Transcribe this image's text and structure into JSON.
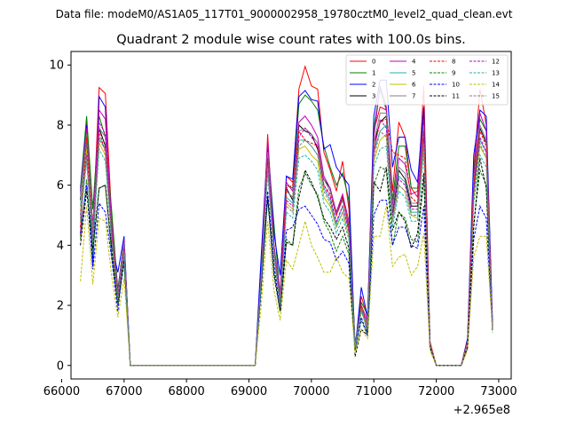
{
  "chart_data": {
    "type": "line",
    "suptitle": "Data file: modeM0/AS1A05_117T01_9000002958_19780cztM0_level2_quad_clean.evt",
    "title": "Quadrant 2 module wise count rates with 100.0s bins.",
    "xlabel": "",
    "ylabel": "",
    "x_offset_label": "+2.965e8",
    "xlim": [
      66150,
      73200
    ],
    "ylim": [
      -0.45,
      10.45
    ],
    "xticks": [
      66000,
      67000,
      68000,
      69000,
      70000,
      71000,
      72000,
      73000
    ],
    "yticks": [
      0,
      2,
      4,
      6,
      8,
      10
    ],
    "legend_position": "top-right",
    "x": [
      66300,
      66400,
      66500,
      66600,
      66700,
      66800,
      66900,
      67000,
      67100,
      67200,
      67300,
      67400,
      67500,
      67600,
      67700,
      67800,
      67900,
      68000,
      68100,
      68200,
      68300,
      68400,
      68500,
      68600,
      68700,
      68800,
      68900,
      69000,
      69100,
      69200,
      69300,
      69400,
      69500,
      69600,
      69700,
      69800,
      69900,
      70000,
      70100,
      70200,
      70300,
      70400,
      70500,
      70600,
      70700,
      70800,
      70900,
      71000,
      71100,
      71200,
      71300,
      71400,
      71500,
      71600,
      71700,
      71800,
      71900,
      72000,
      72100,
      72200,
      72300,
      72400,
      72500,
      72600,
      72700,
      72800,
      72900
    ],
    "series": [
      {
        "name": "0",
        "color": "#ff0000",
        "dash": false,
        "values": [
          4.3,
          8.2,
          4.5,
          9.25,
          9.05,
          5.0,
          2.2,
          3.9,
          0,
          0,
          0,
          0,
          0,
          0,
          0,
          0,
          0,
          0,
          0,
          0,
          0,
          0,
          0,
          0,
          0,
          0,
          0,
          0,
          0,
          3.0,
          7.7,
          4.0,
          2.1,
          6.3,
          6.1,
          9.2,
          9.95,
          9.3,
          9.2,
          7.1,
          6.5,
          5.8,
          6.8,
          5.2,
          0.6,
          2.3,
          1.6,
          7.8,
          8.6,
          8.5,
          5.8,
          8.1,
          7.6,
          5.9,
          5.6,
          9.3,
          0.8,
          0,
          0,
          0,
          0,
          0,
          0.8,
          6.5,
          9.2,
          8.0,
          1.3
        ]
      },
      {
        "name": "1",
        "color": "#008000",
        "dash": false,
        "values": [
          5.9,
          8.3,
          5.2,
          8.3,
          7.6,
          5.2,
          2.5,
          4.2,
          0,
          0,
          0,
          0,
          0,
          0,
          0,
          0,
          0,
          0,
          0,
          0,
          0,
          0,
          0,
          0,
          0,
          0,
          0,
          0,
          0,
          3.5,
          7.3,
          4.7,
          2.3,
          6.0,
          5.9,
          8.7,
          9.0,
          8.8,
          8.5,
          7.3,
          6.6,
          6.0,
          6.4,
          5.5,
          0.7,
          2.1,
          1.7,
          7.9,
          9.2,
          8.5,
          5.5,
          7.3,
          7.3,
          5.9,
          5.9,
          8.4,
          0.7,
          0,
          0,
          0,
          0,
          0,
          0.8,
          6.5,
          8.2,
          7.8,
          1.3
        ]
      },
      {
        "name": "2",
        "color": "#0000ff",
        "dash": false,
        "values": [
          5.8,
          8.0,
          3.3,
          8.95,
          8.6,
          4.0,
          3.1,
          4.3,
          0,
          0,
          0,
          0,
          0,
          0,
          0,
          0,
          0,
          0,
          0,
          0,
          0,
          0,
          0,
          0,
          0,
          0,
          0,
          0,
          0,
          3.8,
          7.4,
          4.4,
          3.0,
          6.3,
          6.2,
          8.95,
          9.15,
          8.85,
          8.8,
          7.2,
          7.35,
          6.6,
          6.3,
          6.0,
          0.5,
          2.6,
          1.6,
          8.3,
          9.5,
          9.5,
          6.6,
          7.6,
          7.6,
          6.5,
          6.1,
          8.6,
          0.7,
          0,
          0,
          0,
          0,
          0,
          0.9,
          7.0,
          8.5,
          8.3,
          1.5
        ]
      },
      {
        "name": "3",
        "color": "#000000",
        "dash": false,
        "values": [
          5.5,
          7.8,
          4.5,
          7.9,
          7.3,
          4.6,
          2.5,
          4.1,
          0,
          0,
          0,
          0,
          0,
          0,
          0,
          0,
          0,
          0,
          0,
          0,
          0,
          0,
          0,
          0,
          0,
          0,
          0,
          0,
          0,
          3.1,
          7.2,
          4.0,
          2.2,
          5.9,
          5.5,
          8.0,
          7.8,
          7.7,
          7.2,
          6.2,
          5.9,
          5.0,
          5.6,
          4.6,
          0.6,
          1.9,
          1.1,
          7.4,
          8.1,
          8.3,
          5.0,
          6.5,
          6.2,
          5.3,
          5.3,
          8.1,
          0.7,
          0,
          0,
          0,
          0,
          0,
          0.7,
          5.9,
          7.9,
          7.4,
          1.2
        ]
      },
      {
        "name": "4",
        "color": "#bf00bf",
        "dash": false,
        "values": [
          5.7,
          7.9,
          4.6,
          8.5,
          8.2,
          4.8,
          2.4,
          4.2,
          0,
          0,
          0,
          0,
          0,
          0,
          0,
          0,
          0,
          0,
          0,
          0,
          0,
          0,
          0,
          0,
          0,
          0,
          0,
          0,
          0,
          3.2,
          7.5,
          4.0,
          2.4,
          6.1,
          5.8,
          8.1,
          8.3,
          8.0,
          7.6,
          6.3,
          5.9,
          5.1,
          5.7,
          4.8,
          0.6,
          2.0,
          1.5,
          7.6,
          9.3,
          8.6,
          5.3,
          6.9,
          6.7,
          5.7,
          5.8,
          8.2,
          0.7,
          0,
          0,
          0,
          0,
          0,
          0.8,
          6.3,
          8.4,
          7.8,
          1.3
        ]
      },
      {
        "name": "5",
        "color": "#20b2aa",
        "dash": false,
        "values": [
          5.3,
          7.4,
          4.3,
          7.6,
          7.2,
          4.4,
          2.3,
          3.9,
          0,
          0,
          0,
          0,
          0,
          0,
          0,
          0,
          0,
          0,
          0,
          0,
          0,
          0,
          0,
          0,
          0,
          0,
          0,
          0,
          0,
          3.0,
          6.9,
          3.8,
          2.1,
          5.6,
          5.4,
          7.5,
          7.5,
          7.3,
          7.0,
          5.9,
          5.5,
          4.7,
          5.3,
          4.5,
          0.6,
          1.9,
          1.3,
          7.1,
          7.8,
          8.0,
          4.9,
          6.3,
          6.1,
          5.1,
          5.1,
          7.6,
          0.7,
          0,
          0,
          0,
          0,
          0,
          0.7,
          5.8,
          7.5,
          7.1,
          1.2
        ]
      },
      {
        "name": "6",
        "color": "#bfbf00",
        "dash": false,
        "values": [
          5.1,
          7.2,
          4.1,
          7.4,
          7.0,
          4.3,
          2.1,
          3.8,
          0,
          0,
          0,
          0,
          0,
          0,
          0,
          0,
          0,
          0,
          0,
          0,
          0,
          0,
          0,
          0,
          0,
          0,
          0,
          0,
          0,
          2.9,
          6.6,
          3.7,
          2.0,
          5.4,
          5.2,
          7.2,
          7.3,
          7.0,
          6.8,
          5.6,
          5.3,
          4.6,
          5.1,
          4.3,
          0.6,
          1.8,
          1.2,
          6.8,
          7.5,
          7.7,
          4.8,
          6.0,
          5.8,
          5.0,
          4.9,
          7.3,
          0.7,
          0,
          0,
          0,
          0,
          0,
          0.7,
          5.6,
          7.3,
          6.9,
          1.2
        ]
      },
      {
        "name": "7",
        "color": "#808080",
        "dash": false,
        "values": [
          5.6,
          7.7,
          4.5,
          7.9,
          7.6,
          4.6,
          2.4,
          4.1,
          0,
          0,
          0,
          0,
          0,
          0,
          0,
          0,
          0,
          0,
          0,
          0,
          0,
          0,
          0,
          0,
          0,
          0,
          0,
          0,
          0,
          3.1,
          7.1,
          3.9,
          2.2,
          5.8,
          5.6,
          7.8,
          7.9,
          7.7,
          7.4,
          6.2,
          5.8,
          5.0,
          5.5,
          4.7,
          0.6,
          2.0,
          1.4,
          7.4,
          8.4,
          8.4,
          5.2,
          6.6,
          6.4,
          5.4,
          5.4,
          8.0,
          0.7,
          0,
          0,
          0,
          0,
          0,
          0.8,
          6.1,
          8.0,
          7.5,
          1.3
        ]
      },
      {
        "name": "8",
        "color": "#ff0000",
        "dash": true,
        "values": [
          4.6,
          7.6,
          4.0,
          7.8,
          7.1,
          4.4,
          2.2,
          3.8,
          0,
          0,
          0,
          0,
          0,
          0,
          0,
          0,
          0,
          0,
          0,
          0,
          0,
          0,
          0,
          0,
          0,
          0,
          0,
          0,
          0,
          2.9,
          6.9,
          3.7,
          2.0,
          5.9,
          6.0,
          7.8,
          7.5,
          7.4,
          7.3,
          6.0,
          5.7,
          5.0,
          5.6,
          4.6,
          0.5,
          2.0,
          1.3,
          7.2,
          8.1,
          8.2,
          7.1,
          7.0,
          6.9,
          5.6,
          5.4,
          7.8,
          0.7,
          0,
          0,
          0,
          0,
          0,
          0.8,
          6.0,
          7.8,
          7.3,
          1.2
        ]
      },
      {
        "name": "9",
        "color": "#008000",
        "dash": true,
        "values": [
          4.2,
          6.2,
          3.7,
          5.9,
          6.0,
          3.7,
          2.0,
          3.4,
          0,
          0,
          0,
          0,
          0,
          0,
          0,
          0,
          0,
          0,
          0,
          0,
          0,
          0,
          0,
          0,
          0,
          0,
          0,
          0,
          0,
          2.6,
          5.6,
          3.1,
          1.8,
          4.2,
          4.0,
          5.9,
          6.4,
          6.0,
          5.7,
          4.8,
          4.4,
          3.8,
          4.3,
          3.7,
          0.5,
          1.5,
          1.0,
          6.0,
          6.6,
          6.5,
          4.0,
          5.1,
          4.9,
          4.2,
          4.1,
          6.2,
          0.6,
          0,
          0,
          0,
          0,
          0,
          0.6,
          4.7,
          6.5,
          6.0,
          1.1
        ]
      },
      {
        "name": "10",
        "color": "#0000ff",
        "dash": true,
        "values": [
          4.4,
          6.0,
          3.2,
          5.4,
          5.1,
          3.6,
          1.8,
          3.7,
          0,
          0,
          0,
          0,
          0,
          0,
          0,
          0,
          0,
          0,
          0,
          0,
          0,
          0,
          0,
          0,
          0,
          0,
          0,
          0,
          0,
          2.7,
          5.8,
          3.3,
          1.9,
          4.5,
          4.6,
          5.2,
          5.3,
          5.0,
          4.7,
          4.2,
          4.1,
          3.5,
          3.8,
          3.4,
          0.5,
          1.6,
          1.0,
          5.0,
          5.5,
          5.5,
          4.0,
          4.6,
          4.6,
          4.0,
          3.9,
          5.3,
          0.6,
          0,
          0,
          0,
          0,
          0,
          0.6,
          4.2,
          5.3,
          4.9,
          1.2
        ]
      },
      {
        "name": "11",
        "color": "#000000",
        "dash": true,
        "values": [
          4.0,
          5.8,
          3.9,
          5.9,
          6.0,
          3.9,
          2.1,
          3.5,
          0,
          0,
          0,
          0,
          0,
          0,
          0,
          0,
          0,
          0,
          0,
          0,
          0,
          0,
          0,
          0,
          0,
          0,
          0,
          0,
          0,
          2.8,
          5.6,
          3.0,
          1.8,
          4.1,
          4.0,
          5.6,
          6.5,
          6.1,
          5.6,
          4.9,
          4.6,
          4.2,
          4.6,
          3.9,
          0.3,
          1.2,
          1.0,
          6.1,
          5.8,
          6.6,
          4.5,
          5.1,
          4.8,
          3.9,
          4.4,
          6.4,
          0.6,
          0,
          0,
          0,
          0,
          0,
          0.6,
          4.6,
          6.9,
          5.9,
          1.2
        ]
      },
      {
        "name": "12",
        "color": "#bf00bf",
        "dash": true,
        "values": [
          5.0,
          7.0,
          4.2,
          8.1,
          7.7,
          4.5,
          2.3,
          3.9,
          0,
          0,
          0,
          0,
          0,
          0,
          0,
          0,
          0,
          0,
          0,
          0,
          0,
          0,
          0,
          0,
          0,
          0,
          0,
          0,
          0,
          3.0,
          6.8,
          3.8,
          2.1,
          5.5,
          5.3,
          7.6,
          7.9,
          7.6,
          7.3,
          6.0,
          5.6,
          4.8,
          5.3,
          4.5,
          0.6,
          1.9,
          1.3,
          7.1,
          8.2,
          7.9,
          5.0,
          6.2,
          6.0,
          5.2,
          5.2,
          7.6,
          0.7,
          0,
          0,
          0,
          0,
          0,
          0.7,
          5.8,
          7.6,
          7.1,
          1.2
        ]
      },
      {
        "name": "13",
        "color": "#20b2aa",
        "dash": true,
        "values": [
          4.8,
          6.8,
          4.0,
          7.2,
          6.8,
          4.2,
          2.2,
          3.7,
          0,
          0,
          0,
          0,
          0,
          0,
          0,
          0,
          0,
          0,
          0,
          0,
          0,
          0,
          0,
          0,
          0,
          0,
          0,
          0,
          0,
          2.9,
          6.4,
          3.6,
          2.0,
          5.1,
          4.9,
          6.9,
          7.0,
          6.8,
          6.5,
          5.4,
          5.1,
          4.4,
          4.9,
          4.2,
          0.6,
          1.8,
          1.2,
          6.6,
          7.2,
          7.3,
          4.6,
          5.8,
          5.6,
          4.8,
          4.8,
          7.1,
          0.7,
          0,
          0,
          0,
          0,
          0,
          0.7,
          5.4,
          7.0,
          6.6,
          1.2
        ]
      },
      {
        "name": "14",
        "color": "#bfbf00",
        "dash": true,
        "values": [
          2.8,
          5.3,
          2.7,
          4.9,
          4.8,
          3.0,
          1.6,
          2.9,
          0,
          0,
          0,
          0,
          0,
          0,
          0,
          0,
          0,
          0,
          0,
          0,
          0,
          0,
          0,
          0,
          0,
          0,
          0,
          0,
          0,
          2.1,
          4.8,
          2.5,
          1.5,
          3.5,
          3.2,
          4.0,
          4.8,
          4.0,
          3.6,
          3.1,
          3.1,
          3.6,
          3.1,
          2.9,
          0.4,
          1.2,
          0.9,
          4.3,
          4.3,
          5.3,
          3.3,
          3.6,
          3.7,
          3.0,
          3.3,
          4.4,
          0.5,
          0,
          0,
          0,
          0,
          0,
          0.5,
          3.6,
          4.3,
          4.3,
          1.2
        ]
      },
      {
        "name": "15",
        "color": "#808080",
        "dash": true,
        "values": [
          4.9,
          6.9,
          4.1,
          7.5,
          7.2,
          4.3,
          2.2,
          3.8,
          0,
          0,
          0,
          0,
          0,
          0,
          0,
          0,
          0,
          0,
          0,
          0,
          0,
          0,
          0,
          0,
          0,
          0,
          0,
          0,
          0,
          3.0,
          6.6,
          3.7,
          2.0,
          5.3,
          5.1,
          7.3,
          7.5,
          7.3,
          7.0,
          5.8,
          5.4,
          4.6,
          5.1,
          4.4,
          0.6,
          1.9,
          1.3,
          6.9,
          7.8,
          7.6,
          4.8,
          6.0,
          5.8,
          5.0,
          5.0,
          7.4,
          0.7,
          0,
          0,
          0,
          0,
          0,
          0.7,
          5.6,
          7.4,
          6.9,
          1.2
        ]
      }
    ]
  }
}
